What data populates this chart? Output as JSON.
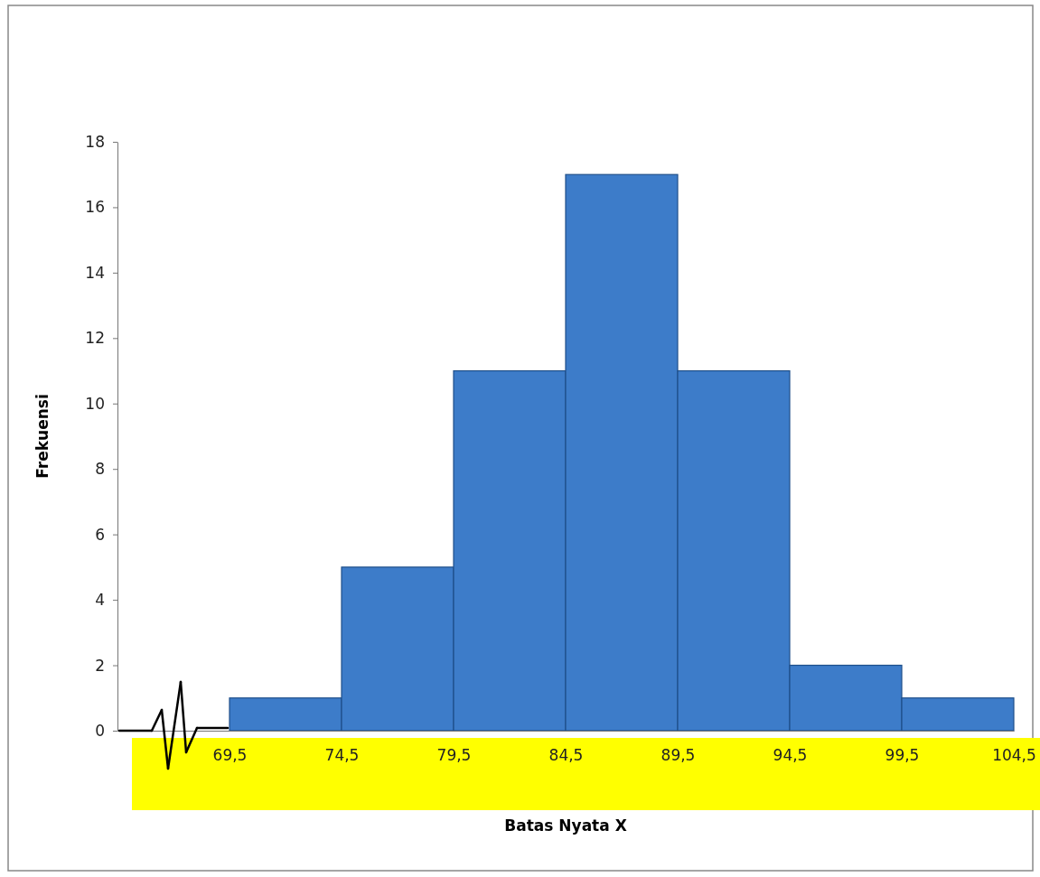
{
  "chart_data": {
    "type": "histogram",
    "xlabel": "Batas Nyata X",
    "ylabel": "Frekuensi",
    "bins": [
      69.5,
      74.5,
      79.5,
      84.5,
      89.5,
      94.5,
      99.5,
      104.5
    ],
    "values": [
      1,
      5,
      11,
      17,
      11,
      2,
      1
    ],
    "color": "#3d7cc9",
    "xlim": [
      64.5,
      104.5
    ],
    "xticks": [
      {
        "value": 69.5,
        "label": "69,5"
      },
      {
        "value": 74.5,
        "label": "74,5"
      },
      {
        "value": 79.5,
        "label": "79,5"
      },
      {
        "value": 84.5,
        "label": "84,5"
      },
      {
        "value": 89.5,
        "label": "89,5"
      },
      {
        "value": 94.5,
        "label": "94,5"
      },
      {
        "value": 99.5,
        "label": "99,5"
      },
      {
        "value": 104.5,
        "label": "104,5"
      }
    ],
    "ylim": [
      0,
      18
    ],
    "yticks": [
      0,
      2,
      4,
      6,
      8,
      10,
      12,
      14,
      16,
      18
    ],
    "grid": false
  }
}
